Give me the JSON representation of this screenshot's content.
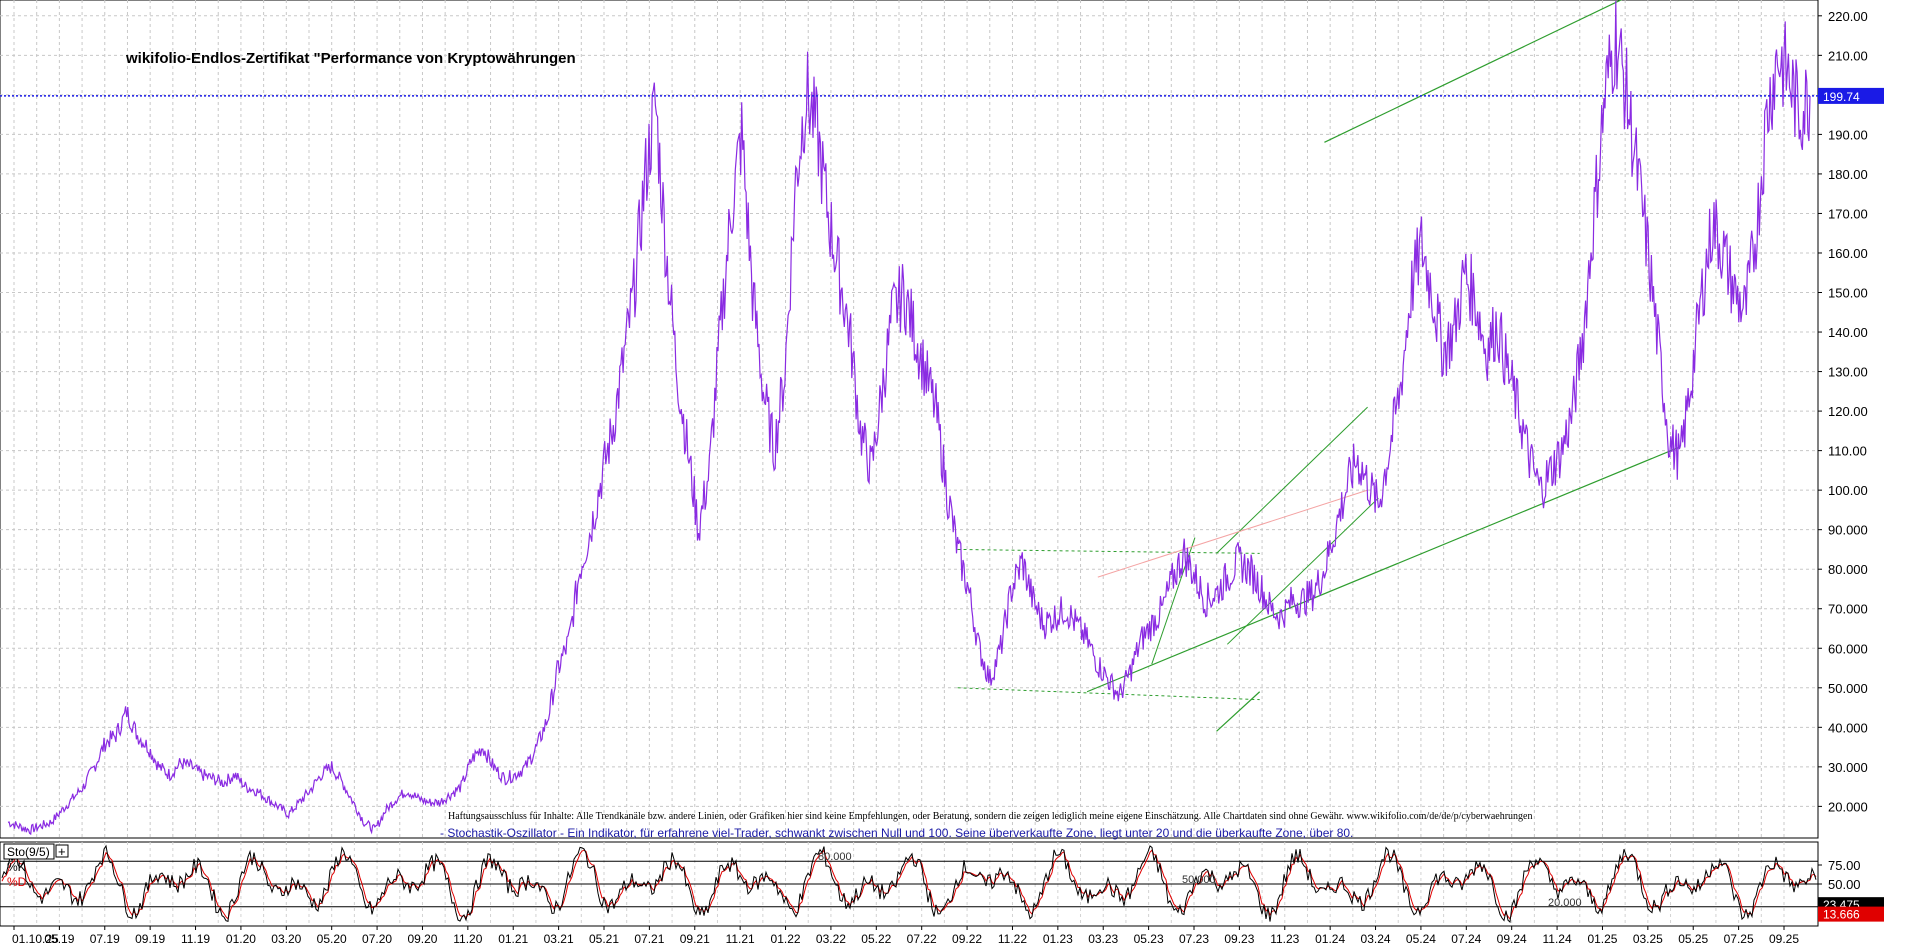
{
  "chart_data": [
    {
      "type": "line",
      "title": "wikifolio-Endlos-Zertifikat \"Performance von Kryptowährungen",
      "disclaimer": "Haftungsausschluss für Inhalte: Alle Trendkanäle bzw. andere Linien, oder Grafiken hier sind keine Empfehlungen, oder Beratung, sondern die zeigen lediglich meine eigene Einschätzung. Alle Chartdaten sind ohne Gewähr.  www.wikifolio.com/de/de/p/cyberwaehrungen",
      "ylim": [
        12,
        224
      ],
      "yticks": [
        "20.000",
        "30.000",
        "40.000",
        "50.000",
        "60.000",
        "70.000",
        "80.000",
        "90.000",
        "100.00",
        "110.00",
        "120.00",
        "130.00",
        "140.00",
        "150.00",
        "160.00",
        "170.00",
        "180.00",
        "190.00",
        "200.00",
        "210.00",
        "220.00"
      ],
      "ytick_values": [
        20,
        30,
        40,
        50,
        60,
        70,
        80,
        90,
        100,
        110,
        120,
        130,
        140,
        150,
        160,
        170,
        180,
        190,
        200,
        210,
        220
      ],
      "xticks": [
        "01.10.25",
        "05.19",
        "07.19",
        "09.19",
        "11.19",
        "01.20",
        "03.20",
        "05.20",
        "07.20",
        "09.20",
        "11.20",
        "01.21",
        "03.21",
        "05.21",
        "07.21",
        "09.21",
        "11.21",
        "01.22",
        "03.22",
        "05.22",
        "07.22",
        "09.22",
        "11.22",
        "01.23",
        "03.23",
        "05.23",
        "07.23",
        "09.23",
        "11.23",
        "01.24",
        "03.24",
        "05.24",
        "07.24",
        "09.24",
        "11.24",
        "01.25",
        "03.25",
        "05.25",
        "07.25",
        "09.25"
      ],
      "xtick_index": [
        0,
        2,
        4,
        6,
        8,
        10,
        12,
        14,
        16,
        18,
        20,
        22,
        24,
        26,
        28,
        30,
        32,
        34,
        36,
        38,
        40,
        42,
        44,
        46,
        48,
        50,
        52,
        54,
        56,
        58,
        60,
        62,
        64,
        66,
        68,
        70,
        72,
        74,
        76,
        78
      ],
      "last_value_label": "199.74",
      "last_value": 199.74,
      "line_color": "#8a2be2",
      "series": [
        {
          "values": [
            16,
            15,
            14,
            15,
            16,
            19,
            22,
            25,
            30,
            36,
            38,
            44,
            38,
            35,
            30,
            28,
            31,
            30,
            28,
            27,
            26,
            28,
            25,
            24,
            22,
            20,
            18,
            21,
            24,
            28,
            30,
            26,
            21,
            16,
            14,
            19,
            22,
            24,
            22,
            21,
            21,
            23,
            25,
            32,
            35,
            30,
            27,
            28,
            30,
            35,
            42,
            55,
            62,
            80,
            90,
            103,
            115,
            132,
            150,
            178,
            198,
            160,
            130,
            110,
            90,
            105,
            140,
            170,
            190,
            150,
            125,
            110,
            130,
            178,
            201,
            190,
            170,
            155,
            140,
            115,
            105,
            125,
            145,
            150,
            140,
            130,
            120,
            100,
            85,
            75,
            60,
            52,
            60,
            75,
            82,
            72,
            66,
            68,
            70,
            66,
            62,
            56,
            52,
            48,
            54,
            62,
            66,
            70,
            78,
            84,
            78,
            72,
            74,
            78,
            82,
            80,
            76,
            70,
            68,
            72,
            72,
            74,
            80,
            90,
            100,
            108,
            102,
            96,
            110,
            125,
            150,
            162,
            150,
            135,
            140,
            155,
            148,
            135,
            142,
            130,
            120,
            108,
            100,
            105,
            110,
            120,
            140,
            170,
            200,
            215,
            200,
            180,
            160,
            135,
            112,
            108,
            128,
            150,
            168,
            160,
            150,
            145,
            165,
            195,
            210,
            205,
            195,
            200
          ]
        }
      ],
      "trend_lines_color": "#2f9e2f",
      "resistance_dotted_color": "#2f9e2f",
      "pink_line_color": "#f4a3a3"
    },
    {
      "type": "line",
      "name": "Sto(9/5)",
      "series": [
        {
          "name": "%K",
          "color": "#000000",
          "last_value": 23.475,
          "last_label": "23.475"
        },
        {
          "name": "%D",
          "color": "#e00000",
          "last_value": 13.666,
          "last_label": "13.666"
        }
      ],
      "description": "- Stochastik-Oszillator - Ein Indikator, für erfahrene viel-Trader, schwankt zwischen Null und 100. Seine überverkaufte Zone, liegt unter 20 und die überkaufte Zone, über 80.",
      "ylim": [
        0,
        100
      ],
      "yticks": [
        "75.00",
        "50.00"
      ],
      "ytick_values": [
        75,
        50
      ],
      "levels": [
        {
          "value": 80,
          "label": "80.000"
        },
        {
          "value": 50,
          "label": "50.000"
        },
        {
          "value": 20,
          "label": "20.000"
        }
      ]
    }
  ]
}
